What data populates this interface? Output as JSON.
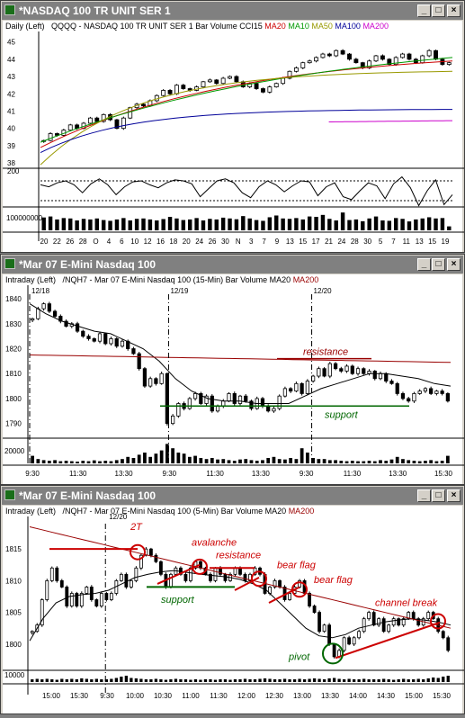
{
  "windows": [
    {
      "title": "*NASDAQ 100 TR UNIT SER 1",
      "header_prefix": "Daily (Left)",
      "header_series": "QQQQ - NASDAQ 100 TR UNIT SER 1  Bar  Volume  CCI15",
      "ma_labels": [
        {
          "text": "MA20",
          "color": "#cc0000"
        },
        {
          "text": "MA10",
          "color": "#009900"
        },
        {
          "text": "MA50",
          "color": "#999900"
        },
        {
          "text": "MA100",
          "color": "#000099"
        },
        {
          "text": "MA200",
          "color": "#cc00cc"
        }
      ]
    },
    {
      "title": "*Mar 07  E-Mini Nasdaq 100",
      "header_prefix": "Intraday (Left)",
      "header_series": "/NQH7 - Mar 07 E-Mini Nasdaq 100 (15-Min)  Bar  Volume",
      "ma_labels": [
        {
          "text": "MA20",
          "color": "#000000"
        },
        {
          "text": "MA200",
          "color": "#990000"
        }
      ]
    },
    {
      "title": "*Mar 07  E-Mini Nasdaq 100",
      "header_prefix": "Intraday (Left)",
      "header_series": "/NQH7 - Mar 07 E-Mini Nasdaq 100 (5-Min)  Bar  Volume",
      "ma_labels": [
        {
          "text": "MA20",
          "color": "#000000"
        },
        {
          "text": "MA200",
          "color": "#990000"
        }
      ]
    }
  ],
  "window_buttons": {
    "minimize": "_",
    "maximize": "□",
    "close": "×"
  },
  "chart_data": [
    {
      "type": "candlestick",
      "title": "QQQQ - NASDAQ 100 TR UNIT SER 1",
      "ylim": [
        37.8,
        45.5
      ],
      "y_ticks": [
        38,
        39,
        40,
        41,
        42,
        43,
        44,
        45
      ],
      "x_tick_labels": [
        "20",
        "22",
        "26",
        "28",
        "O",
        "4",
        "6",
        "10",
        "12",
        "16",
        "18",
        "20",
        "24",
        "26",
        "30",
        "N",
        "3",
        "7",
        "9",
        "13",
        "15",
        "17",
        "21",
        "24",
        "28",
        "30",
        "5",
        "7",
        "11",
        "13",
        "15",
        "19"
      ],
      "closes": [
        39.3,
        39.7,
        39.6,
        39.9,
        40.2,
        40.0,
        40.3,
        40.6,
        40.4,
        40.8,
        40.5,
        40.0,
        40.6,
        41.2,
        41.4,
        41.3,
        41.6,
        41.9,
        42.2,
        42.0,
        42.5,
        42.3,
        42.2,
        42.4,
        42.7,
        42.8,
        42.6,
        42.9,
        43.0,
        42.7,
        42.4,
        42.6,
        42.3,
        42.1,
        42.4,
        42.6,
        42.9,
        43.3,
        43.5,
        43.8,
        43.9,
        44.1,
        44.3,
        44.2,
        44.5,
        44.3,
        44.0,
        43.8,
        43.5,
        43.9,
        44.2,
        44.0,
        43.7,
        44.1,
        44.3,
        44.0,
        43.8,
        44.2,
        44.5,
        44.0,
        43.7,
        43.8
      ],
      "ma_series": [
        {
          "name": "MA20",
          "color": "#cc0000",
          "from": 38.9,
          "to": 43.9,
          "curve": 0.7
        },
        {
          "name": "MA10",
          "color": "#009900",
          "from": 39.2,
          "to": 44.1,
          "curve": 0.5
        },
        {
          "name": "MA50",
          "color": "#999900",
          "from": 37.9,
          "to": 43.3,
          "curve": 1.4
        },
        {
          "name": "MA100",
          "color": "#000099",
          "from": 38.6,
          "to": 41.1,
          "curve": 1.6
        },
        {
          "name": "MA200",
          "color": "#cc00cc",
          "from": 40.2,
          "to": 40.45,
          "curve": 0,
          "start_fraction": 0.7
        }
      ],
      "cci": {
        "y_tick": 200,
        "values": [
          60,
          40,
          80,
          100,
          60,
          -20,
          70,
          120,
          60,
          -40,
          40,
          90,
          100,
          60,
          30,
          80,
          110,
          100,
          70,
          -60,
          20,
          100,
          120,
          80,
          -20,
          -70,
          40,
          100,
          60,
          -10,
          50,
          100,
          90,
          -50,
          40,
          80,
          -60,
          -90,
          0,
          80,
          50,
          -80,
          70,
          140,
          30,
          -150,
          0,
          110,
          -140,
          -40
        ],
        "dotted_levels": [
          100,
          -100
        ]
      },
      "volume": {
        "y_tick_label": "100000000",
        "values": [
          0.65,
          0.7,
          0.55,
          0.62,
          0.6,
          0.5,
          0.58,
          0.55,
          0.6,
          0.52,
          0.48,
          0.55,
          0.62,
          0.5,
          0.58,
          0.6,
          0.55,
          0.5,
          0.57,
          0.68,
          0.6,
          0.52,
          0.55,
          0.62,
          0.5,
          0.58,
          0.55,
          0.64,
          0.6,
          0.56,
          0.72,
          0.6,
          0.52,
          0.48,
          0.66,
          0.75,
          0.6,
          0.58,
          0.62,
          0.55,
          0.7,
          0.68,
          0.78,
          0.58,
          0.5,
          0.9,
          0.52,
          0.55,
          0.46,
          0.6,
          0.7,
          0.5,
          0.48,
          0.62,
          0.58,
          0.45,
          0.55,
          0.6,
          0.66,
          0.6,
          0.62,
          0.2
        ]
      }
    },
    {
      "type": "candlestick",
      "title": "/NQH7 - Mar 07 E-Mini Nasdaq 100 (15-Min)",
      "ylim": [
        1787,
        1844
      ],
      "y_ticks": [
        1790,
        1800,
        1810,
        1820,
        1830,
        1840
      ],
      "x_tick_labels": [
        "9:30",
        "11:30",
        "13:30",
        "9:30",
        "11:30",
        "13:30",
        "9:30",
        "11:30",
        "13:30",
        "15:30"
      ],
      "session_labels": [
        "12/18",
        "12/19",
        "12/20"
      ],
      "closes": [
        1832,
        1836,
        1838,
        1835,
        1833,
        1831,
        1829,
        1830,
        1827,
        1825,
        1824,
        1823,
        1826,
        1822,
        1824,
        1821,
        1823,
        1820,
        1818,
        1812,
        1805,
        1808,
        1806,
        1810,
        1790,
        1793,
        1798,
        1796,
        1800,
        1802,
        1798,
        1801,
        1795,
        1797,
        1799,
        1802,
        1798,
        1801,
        1799,
        1796,
        1800,
        1797,
        1795,
        1796,
        1801,
        1804,
        1803,
        1806,
        1802,
        1807,
        1809,
        1812,
        1809,
        1814,
        1812,
        1811,
        1813,
        1810,
        1812,
        1810,
        1811,
        1808,
        1810,
        1807,
        1806,
        1802,
        1800,
        1799,
        1802,
        1803,
        1804,
        1802,
        1803,
        1802,
        1799
      ],
      "ma20": {
        "color": "#000000",
        "points": [
          1838,
          1834,
          1831,
          1829,
          1827,
          1826,
          1823,
          1820,
          1815,
          1808,
          1803,
          1800,
          1799,
          1799,
          1798,
          1798,
          1798,
          1801,
          1804,
          1806,
          1808,
          1810,
          1810,
          1809,
          1808,
          1806,
          1805
        ]
      },
      "ma200": {
        "color": "#990000",
        "from": 1817.5,
        "to": 1814.5
      },
      "annotations": [
        {
          "text": "resistance",
          "color": "#990000",
          "line_level": 1816
        },
        {
          "text": "support",
          "color": "#006600",
          "line_level": 1797
        }
      ],
      "volume": {
        "y_tick_label": "20000",
        "values": [
          0.35,
          0.2,
          0.15,
          0.12,
          0.15,
          0.1,
          0.12,
          0.1,
          0.08,
          0.12,
          0.1,
          0.14,
          0.1,
          0.12,
          0.1,
          0.15,
          0.2,
          0.3,
          0.25,
          0.4,
          0.5,
          0.3,
          0.45,
          0.6,
          0.9,
          0.7,
          0.5,
          0.45,
          0.3,
          0.35,
          0.25,
          0.2,
          0.25,
          0.18,
          0.2,
          0.15,
          0.12,
          0.18,
          0.2,
          0.15,
          0.12,
          0.15,
          0.25,
          0.3,
          0.2,
          0.18,
          0.25,
          0.2,
          0.7,
          0.5,
          0.25,
          0.2,
          0.2,
          0.15,
          0.15,
          0.12,
          0.1,
          0.12,
          0.1,
          0.1,
          0.12,
          0.1,
          0.15,
          0.12,
          0.18,
          0.3,
          0.2,
          0.15,
          0.12,
          0.1,
          0.12,
          0.15,
          0.1,
          0.12,
          0.35
        ]
      }
    },
    {
      "type": "candlestick",
      "title": "/NQH7 - Mar 07 E-Mini Nasdaq 100 (5-Min)",
      "ylim": [
        1796,
        1819
      ],
      "y_ticks": [
        1800,
        1805,
        1810,
        1815
      ],
      "x_tick_labels": [
        "15:00",
        "15:30",
        "9:30",
        "10:00",
        "10:30",
        "11:00",
        "11:30",
        "12:00",
        "12:30",
        "13:00",
        "13:30",
        "14:00",
        "14:30",
        "15:00",
        "15:30"
      ],
      "session_label": "12/20",
      "closes": [
        1802,
        1803,
        1807,
        1810,
        1812,
        1810,
        1809,
        1806,
        1808,
        1806,
        1808,
        1809,
        1807,
        1806,
        1808,
        1807,
        1808,
        1810,
        1811,
        1809,
        1810,
        1812,
        1814,
        1815,
        1814,
        1813,
        1811,
        1809,
        1811,
        1812,
        1811,
        1810,
        1812,
        1813,
        1812,
        1811,
        1810,
        1812,
        1811,
        1810,
        1811,
        1812,
        1811,
        1810,
        1811,
        1812,
        1811,
        1808,
        1809,
        1810,
        1809,
        1807,
        1808,
        1809,
        1810,
        1808,
        1806,
        1805,
        1802,
        1803,
        1800,
        1798,
        1799,
        1801,
        1800,
        1801,
        1802,
        1804,
        1805,
        1803,
        1804,
        1802,
        1803,
        1804,
        1803,
        1804,
        1805,
        1804,
        1803,
        1804,
        1805,
        1804,
        1802,
        1801,
        1799
      ],
      "ma20": {
        "color": "#000000",
        "points": [
          1800.5,
          1804,
          1806.5,
          1807.5,
          1807.8,
          1808,
          1808.5,
          1809.5,
          1810.5,
          1811,
          1811.4,
          1811.6,
          1811.3,
          1811,
          1810.8,
          1810.6,
          1810.2,
          1809.5,
          1808.5,
          1806.5,
          1804.5,
          1802.5,
          1801.3,
          1801,
          1801.5,
          1802.5,
          1803,
          1803.5,
          1803.8,
          1804,
          1803.8,
          1803.5,
          1803
        ]
      },
      "ma200": {
        "color": "#990000",
        "from": 1818.5,
        "to": 1802.5
      },
      "annotations": [
        {
          "text": "2T",
          "color": "#cc0000"
        },
        {
          "text": "avalanche",
          "color": "#cc0000"
        },
        {
          "text": "resistance",
          "color": "#cc0000"
        },
        {
          "text": "support",
          "color": "#006600"
        },
        {
          "text": "bear flag",
          "color": "#cc0000"
        },
        {
          "text": "bear flag",
          "color": "#cc0000"
        },
        {
          "text": "channel break",
          "color": "#cc0000"
        },
        {
          "text": "pivot",
          "color": "#006600"
        }
      ],
      "volume": {
        "y_tick_label": "10000",
        "values": [
          0.3,
          0.35,
          0.3,
          0.35,
          0.3,
          0.25,
          0.35,
          0.3,
          0.35,
          0.3,
          0.4,
          0.35,
          0.3,
          0.35,
          0.3,
          0.3,
          0.35,
          0.45,
          0.6,
          0.7,
          0.45,
          0.4,
          0.35,
          0.3,
          0.3,
          0.35,
          0.3,
          0.25,
          0.3,
          0.35,
          0.3,
          0.3,
          0.25,
          0.3,
          0.25,
          0.3,
          0.3,
          0.25,
          0.3,
          0.3,
          0.25,
          0.3,
          0.3,
          0.35,
          0.3,
          0.3,
          0.35,
          0.4,
          0.35,
          0.3,
          0.3,
          0.35,
          0.3,
          0.3,
          0.35,
          0.3,
          0.35,
          0.4,
          0.35,
          0.3,
          0.4,
          0.45,
          0.35,
          0.3,
          0.35,
          0.3,
          0.3,
          0.35,
          0.3,
          0.3,
          0.3,
          0.35,
          0.3,
          0.25,
          0.3,
          0.35,
          0.3,
          0.3,
          0.35,
          0.3,
          0.4,
          0.5,
          0.45,
          0.6,
          0.7
        ]
      }
    }
  ]
}
